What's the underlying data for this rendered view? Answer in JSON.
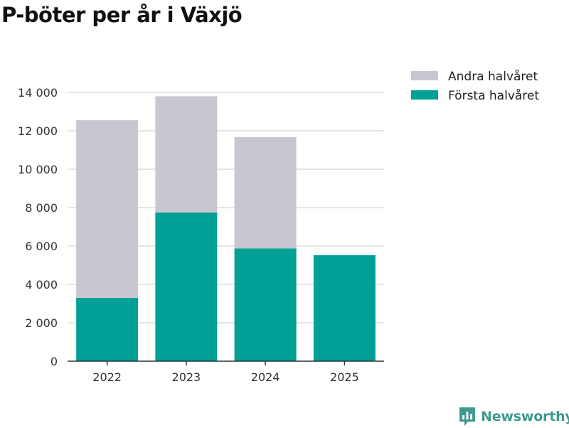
{
  "title": "P-böter per år i Växjö",
  "chart_data": {
    "type": "bar",
    "stacked": true,
    "title": "P-böter per år i Växjö",
    "categories": [
      "2022",
      "2023",
      "2024",
      "2025"
    ],
    "series": [
      {
        "name": "Första halvåret",
        "color": "#00a097",
        "values": [
          3300,
          7750,
          5870,
          5520
        ]
      },
      {
        "name": "Andra halvåret",
        "color": "#c8c7d0",
        "values": [
          9250,
          6050,
          5800,
          0
        ]
      }
    ],
    "legend_order": [
      "Andra halvåret",
      "Första halvåret"
    ],
    "y_ticks": [
      0,
      2000,
      4000,
      6000,
      8000,
      10000,
      12000,
      14000
    ],
    "y_tick_labels": [
      "0",
      "2 000",
      "4 000",
      "6 000",
      "8 000",
      "10 000",
      "12 000",
      "14 000"
    ],
    "ylim": [
      0,
      14000
    ],
    "xlabel": "",
    "ylabel": "",
    "grid": true,
    "legend_position": "top-right"
  },
  "brand": {
    "name": "Newsworthy",
    "icon": "newsworthy-logo-icon",
    "color": "#3e9a8d"
  },
  "colors": {
    "axis": "#333333",
    "grid": "#dddddd"
  }
}
